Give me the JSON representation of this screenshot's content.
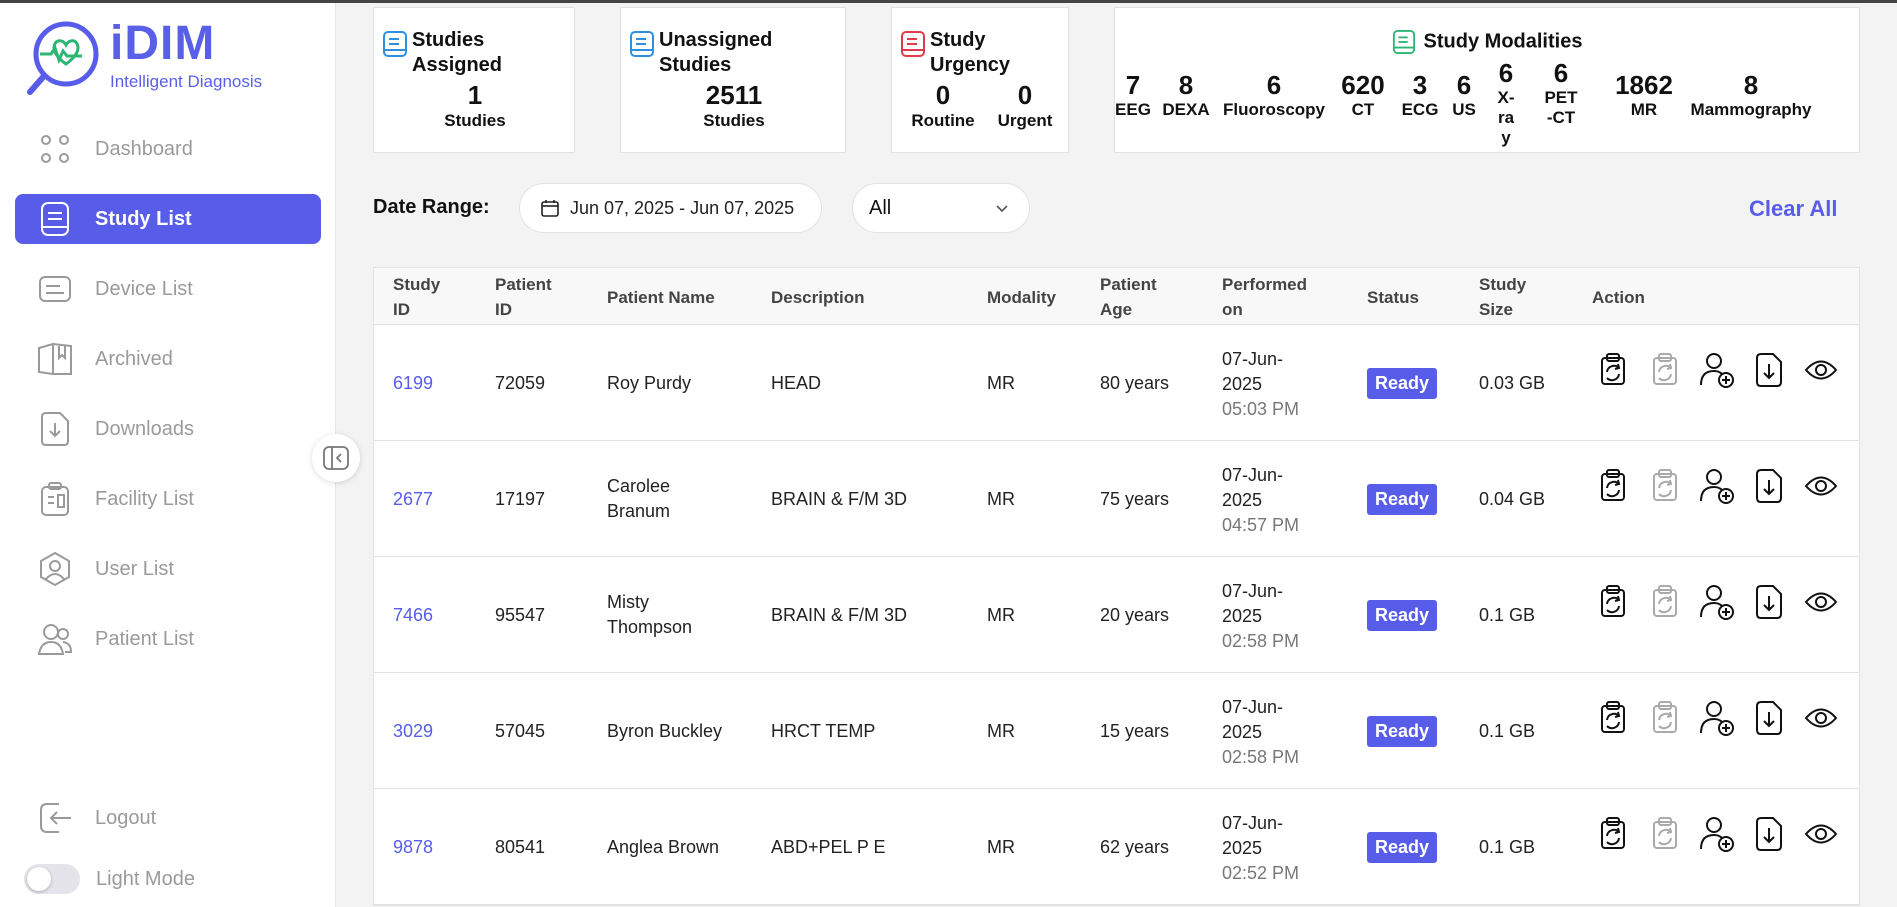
{
  "brand": {
    "name": "iDIM",
    "tagline": "Intelligent Diagnosis"
  },
  "sidebar": {
    "items": [
      {
        "label": "Dashboard",
        "icon": "dashboard-icon",
        "active": false
      },
      {
        "label": "Study List",
        "icon": "study-list-icon",
        "active": true
      },
      {
        "label": "Device List",
        "icon": "device-list-icon",
        "active": false
      },
      {
        "label": "Archived",
        "icon": "archive-book-icon",
        "active": false
      },
      {
        "label": "Downloads",
        "icon": "downloads-icon",
        "active": false
      },
      {
        "label": "Facility List",
        "icon": "facility-icon",
        "active": false
      },
      {
        "label": "User List",
        "icon": "user-icon",
        "active": false
      },
      {
        "label": "Patient List",
        "icon": "patients-icon",
        "active": false
      }
    ],
    "logout": "Logout",
    "mode": "Light Mode"
  },
  "stats": {
    "assigned": {
      "title": "Studies Assigned",
      "value": "1",
      "unit": "Studies"
    },
    "unassigned": {
      "title": "Unassigned Studies",
      "value": "2511",
      "unit": "Studies"
    },
    "urgency": {
      "title": "Study Urgency",
      "routine_value": "0",
      "routine_label": "Routine",
      "urgent_value": "0",
      "urgent_label": "Urgent"
    },
    "modalities": {
      "title": "Study Modalities",
      "items": [
        {
          "value": "7",
          "label": "EEG"
        },
        {
          "value": "8",
          "label": "DEXA"
        },
        {
          "value": "6",
          "label": "Fluoroscopy"
        },
        {
          "value": "620",
          "label": "CT"
        },
        {
          "value": "3",
          "label": "ECG"
        },
        {
          "value": "6",
          "label": "US"
        },
        {
          "value": "6",
          "label": "X-ray"
        },
        {
          "value": "6",
          "label": "PET-CT"
        },
        {
          "value": "1862",
          "label": "MR"
        },
        {
          "value": "8",
          "label": "Mammography"
        }
      ]
    }
  },
  "filters": {
    "date_label": "Date Range:",
    "date_range": "Jun 07, 2025 - Jun 07, 2025",
    "select_value": "All",
    "clear_all": "Clear All"
  },
  "table": {
    "headers": {
      "study_id": "Study ID",
      "patient_id": "Patient ID",
      "patient_name": "Patient Name",
      "description": "Description",
      "modality": "Modality",
      "patient_age": "Patient Age",
      "performed_on": "Performed on",
      "status": "Status",
      "study_size": "Study Size",
      "action": "Action"
    },
    "rows": [
      {
        "study_id": "6199",
        "patient_id": "72059",
        "patient_name": "Roy Purdy",
        "description": "HEAD",
        "modality": "MR",
        "age": "80 years",
        "date": "07-Jun-2025",
        "time": "05:03 PM",
        "status": "Ready",
        "size": "0.03 GB"
      },
      {
        "study_id": "2677",
        "patient_id": "17197",
        "patient_name": "Carolee Branum",
        "description": "BRAIN & F/M 3D",
        "modality": "MR",
        "age": "75 years",
        "date": "07-Jun-2025",
        "time": "04:57 PM",
        "status": "Ready",
        "size": "0.04 GB"
      },
      {
        "study_id": "7466",
        "patient_id": "95547",
        "patient_name": "Misty Thompson",
        "description": "BRAIN & F/M 3D",
        "modality": "MR",
        "age": "20 years",
        "date": "07-Jun-2025",
        "time": "02:58 PM",
        "status": "Ready",
        "size": "0.1 GB"
      },
      {
        "study_id": "3029",
        "patient_id": "57045",
        "patient_name": "Byron Buckley",
        "description": "HRCT TEMP",
        "modality": "MR",
        "age": "15 years",
        "date": "07-Jun-2025",
        "time": "02:58 PM",
        "status": "Ready",
        "size": "0.1 GB"
      },
      {
        "study_id": "9878",
        "patient_id": "80541",
        "patient_name": "Anglea Brown",
        "description": "ABD+PEL P E",
        "modality": "MR",
        "age": "62 years",
        "date": "07-Jun-2025",
        "time": "02:52 PM",
        "status": "Ready",
        "size": "0.1 GB"
      }
    ],
    "action_icons": [
      "assign-clipboard-icon",
      "unassign-clipboard-icon",
      "add-user-icon",
      "download-file-icon",
      "view-eye-icon"
    ]
  },
  "colors": {
    "accent": "#575de8",
    "logo_green": "#2bb673",
    "urgency_red": "#e03b4b"
  }
}
